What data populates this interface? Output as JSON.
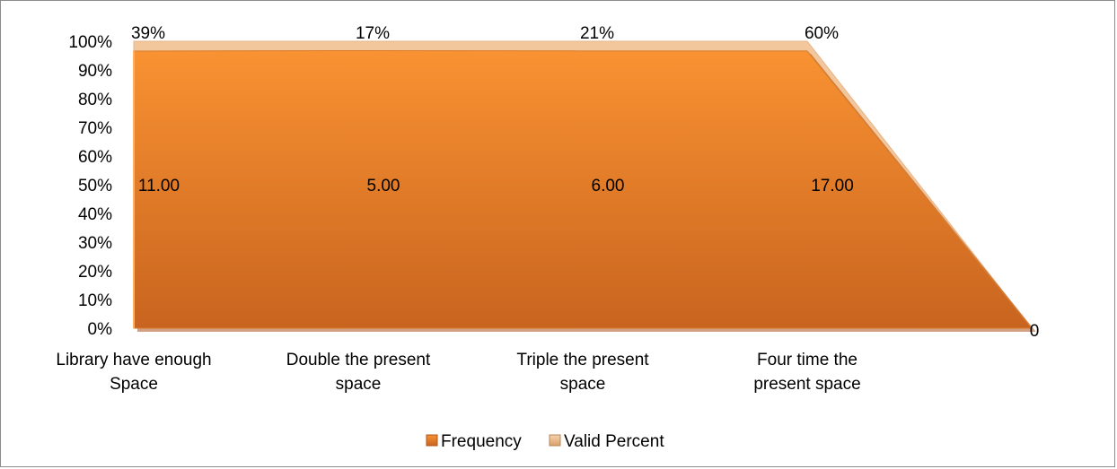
{
  "chart_data": {
    "type": "area",
    "stacked_percent": true,
    "categories": [
      "Library have enough Space",
      "Double the present space",
      "Triple the present space",
      "Four time the present space",
      ""
    ],
    "category_label_lines": [
      [
        "Library have enough",
        "Space"
      ],
      [
        "Double the present",
        "space"
      ],
      [
        "Triple the present",
        "space"
      ],
      [
        "Four time the",
        "present space"
      ],
      []
    ],
    "series": [
      {
        "name": "Frequency",
        "values": [
          11,
          5,
          6,
          17,
          0
        ],
        "labels": [
          "11.00",
          "5.00",
          "6.00",
          "17.00",
          ""
        ],
        "color": "#e98a2b"
      },
      {
        "name": "Valid Percent",
        "values": [
          0.39,
          0.17,
          0.21,
          0.6,
          0
        ],
        "labels": [
          "39%",
          "17%",
          "21%",
          "60%",
          "0"
        ],
        "color": "#f2c79b"
      }
    ],
    "y_ticks": [
      "0%",
      "10%",
      "20%",
      "30%",
      "40%",
      "50%",
      "60%",
      "70%",
      "80%",
      "90%",
      "100%"
    ],
    "ylim": [
      0,
      100
    ],
    "grid": false,
    "legend_position": "bottom",
    "title": "",
    "xlabel": "",
    "ylabel": ""
  }
}
